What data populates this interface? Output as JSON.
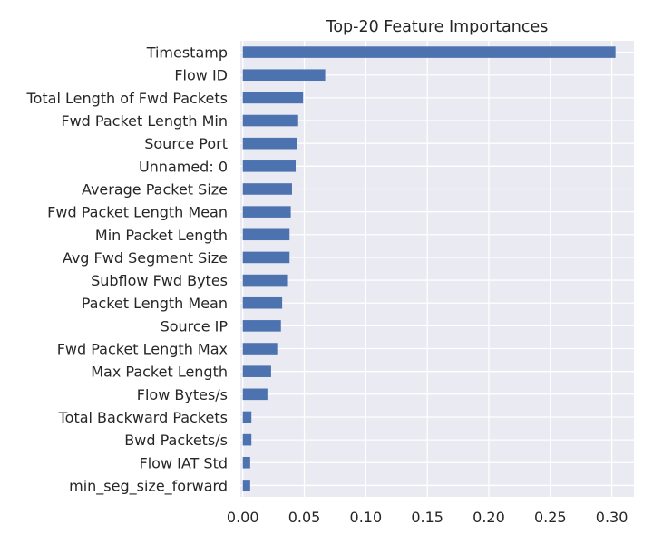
{
  "chart_data": {
    "type": "bar",
    "orientation": "horizontal",
    "title": "Top-20 Feature Importances",
    "xlabel": "",
    "ylabel": "",
    "xlim": [
      -0.002,
      0.318
    ],
    "grid": true,
    "legend": "none",
    "categories": [
      "Timestamp",
      "Flow ID",
      "Total Length of Fwd Packets",
      "Fwd Packet Length Min",
      "Source Port",
      "Unnamed: 0",
      "Average Packet Size",
      "Fwd Packet Length Mean",
      "Min Packet Length",
      "Avg Fwd Segment Size",
      "Subflow Fwd Bytes",
      "Packet Length Mean",
      "Source IP",
      "Fwd Packet Length Max",
      "Max Packet Length",
      "Flow Bytes/s",
      "Total Backward Packets",
      "Bwd Packets/s",
      "Flow IAT Std",
      "min_seg_size_forward"
    ],
    "values": [
      0.303,
      0.067,
      0.049,
      0.045,
      0.044,
      0.043,
      0.04,
      0.039,
      0.038,
      0.038,
      0.036,
      0.032,
      0.031,
      0.028,
      0.023,
      0.02,
      0.007,
      0.007,
      0.006,
      0.006
    ],
    "xticks": [
      0.0,
      0.05,
      0.1,
      0.15,
      0.2,
      0.25,
      0.3
    ],
    "xtick_labels": [
      "0.00",
      "0.05",
      "0.10",
      "0.15",
      "0.20",
      "0.25",
      "0.30"
    ],
    "colors": {
      "bar": "#4c72b0",
      "background": "#eaeaf2",
      "grid": "#ffffff",
      "text": "#262626"
    }
  }
}
